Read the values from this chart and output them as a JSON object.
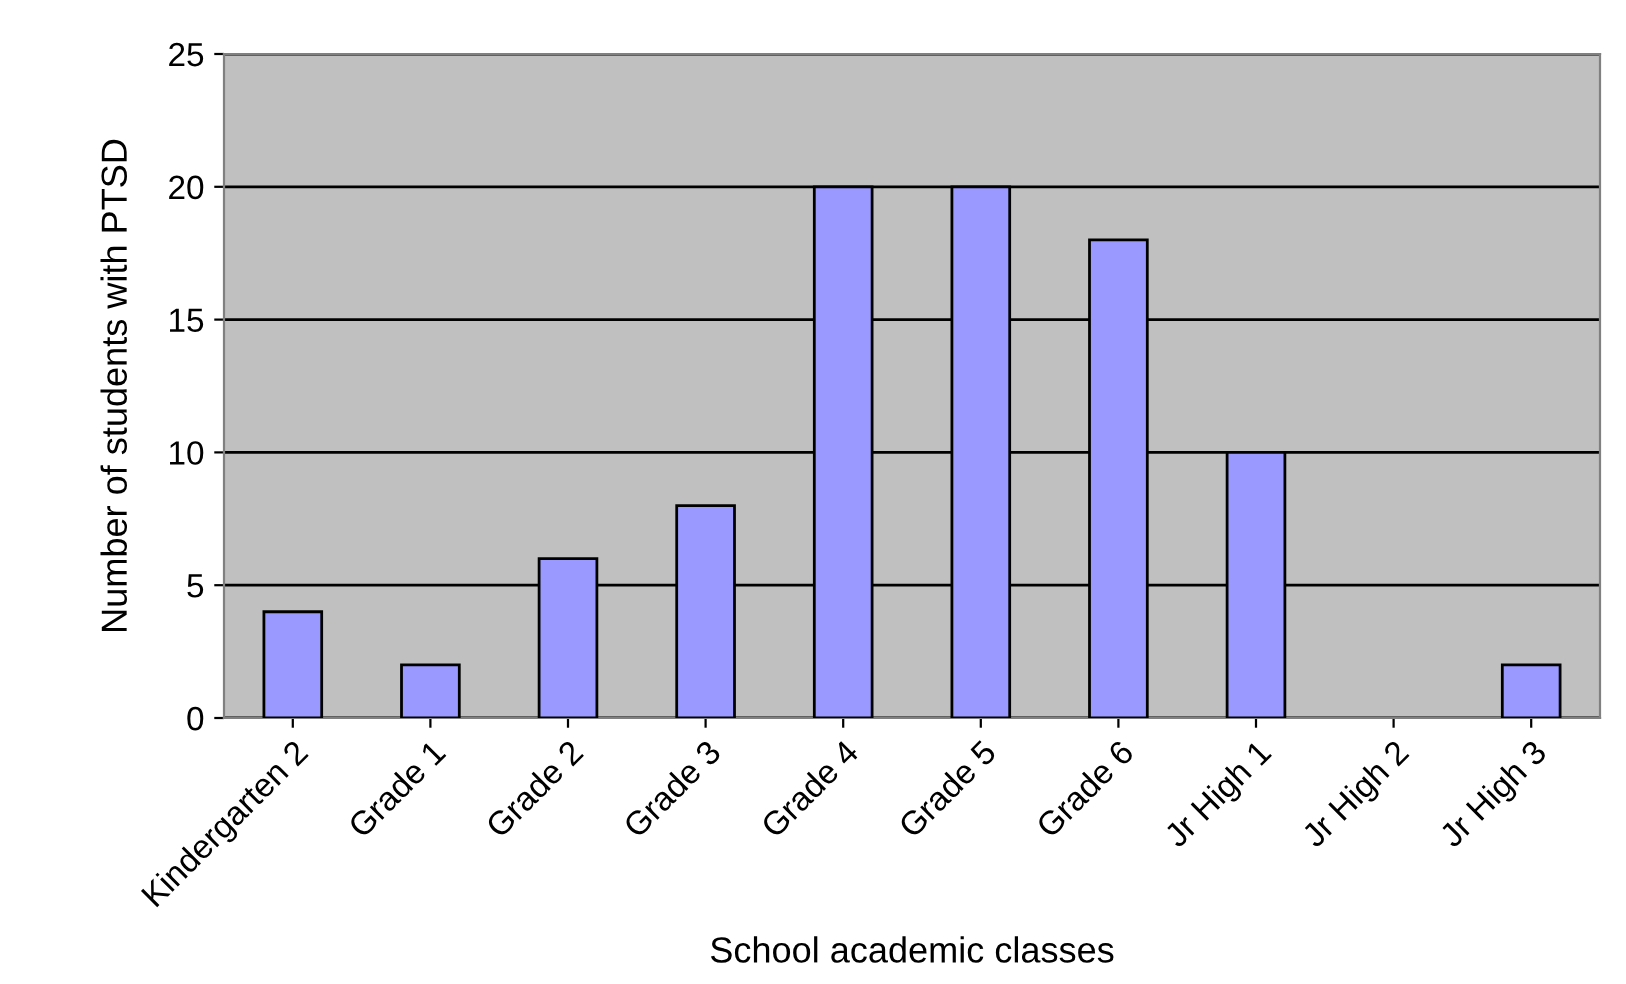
{
  "chart_data": {
    "type": "bar",
    "xlabel": "School academic classes",
    "ylabel": "Number of students with PTSD",
    "categories": [
      "Kindergarten 2",
      "Grade 1",
      "Grade 2",
      "Grade 3",
      "Grade 4",
      "Grade 5",
      "Grade 6",
      "Jr High 1",
      "Jr High 2",
      "Jr High 3"
    ],
    "values": [
      4,
      2,
      6,
      8,
      20,
      20,
      18,
      10,
      null,
      2
    ],
    "color": "#9999ff",
    "ylim": [
      0,
      25
    ],
    "yticks": [
      0,
      5,
      10,
      15,
      20,
      25
    ],
    "grid": "y",
    "legend": false
  }
}
